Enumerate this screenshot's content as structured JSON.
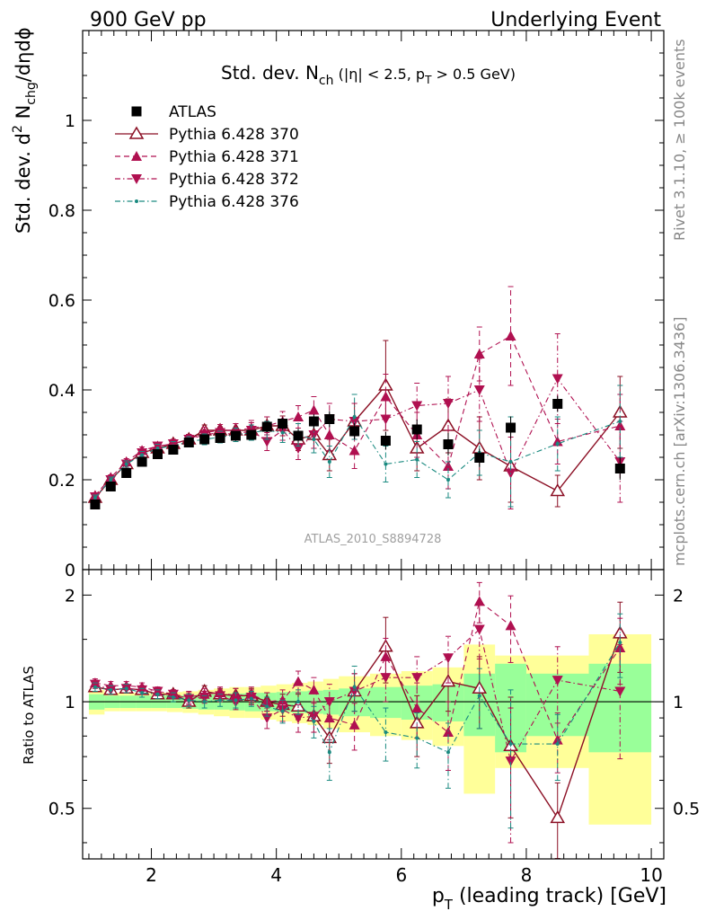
{
  "header": {
    "left": "900 GeV pp",
    "right": "Underlying Event"
  },
  "side_text": {
    "top": "Rivet 3.1.10, ≥ 100k events",
    "bottom": "mcplots.cern.ch [arXiv:1306.3436]"
  },
  "chart_data": [
    {
      "type": "scatter",
      "panel": "main",
      "title_main": "Std. dev. N",
      "title_sub": "ch",
      "title_rest": " (|η| < 2.5, p",
      "title_sub2": "T",
      "title_end": " > 0.5 GeV)",
      "ylabel": "Std. dev. d² Nₕₕₕ/dηdϕ",
      "ylabel_parts": [
        "Std. dev. d",
        "2",
        " N",
        "chg",
        "/dηdϕ"
      ],
      "watermark": "ATLAS_2010_S8894728",
      "xlim": [
        0.9,
        10.2
      ],
      "ylim": [
        0,
        1.2
      ],
      "yticks": [
        {
          "v": 0,
          "label": "0"
        },
        {
          "v": 0.2,
          "label": "0.2"
        },
        {
          "v": 0.4,
          "label": "0.4"
        },
        {
          "v": 0.6,
          "label": "0.6"
        },
        {
          "v": 0.8,
          "label": "0.8"
        },
        {
          "v": 1,
          "label": "1"
        }
      ],
      "x": [
        1.1,
        1.35,
        1.6,
        1.85,
        2.1,
        2.35,
        2.6,
        2.85,
        3.1,
        3.35,
        3.6,
        3.85,
        4.1,
        4.35,
        4.6,
        4.85,
        5.25,
        5.75,
        6.25,
        6.75,
        7.25,
        7.75,
        8.5,
        9.5
      ],
      "series": [
        {
          "name": "ATLAS",
          "style": "data",
          "color": "#000000",
          "values": [
            0.145,
            0.185,
            0.215,
            0.24,
            0.257,
            0.267,
            0.283,
            0.29,
            0.293,
            0.298,
            0.3,
            0.318,
            0.325,
            0.298,
            0.33,
            0.335,
            0.308,
            0.287,
            0.312,
            0.279,
            0.249,
            0.316,
            0.369,
            0.225
          ],
          "err": [
            0.004,
            0.004,
            0.004,
            0.005,
            0.005,
            0.006,
            0.007,
            0.008,
            0.009,
            0.01,
            0.011,
            0.012,
            0.014,
            0.015,
            0.016,
            0.018,
            0.018,
            0.02,
            0.022,
            0.025,
            0.02,
            0.025,
            0.018,
            0.025
          ]
        },
        {
          "name": "Pythia 6.428 370",
          "style": "solid",
          "marker": "triangle-up-open",
          "color": "#8b0f24",
          "values": [
            0.16,
            0.2,
            0.235,
            0.26,
            0.27,
            0.28,
            0.29,
            0.31,
            0.31,
            0.31,
            0.31,
            0.32,
            0.32,
            0.29,
            0.3,
            0.255,
            0.33,
            0.41,
            0.27,
            0.32,
            0.27,
            0.23,
            0.175,
            0.35
          ],
          "err": [
            0.006,
            0.006,
            0.007,
            0.008,
            0.009,
            0.01,
            0.011,
            0.012,
            0.013,
            0.015,
            0.017,
            0.02,
            0.022,
            0.025,
            0.03,
            0.035,
            0.04,
            0.1,
            0.05,
            0.06,
            0.07,
            0.08,
            0.035,
            0.08
          ]
        },
        {
          "name": "Pythia 6.428 371",
          "style": "dashed",
          "marker": "triangle-up",
          "color": "#b01050",
          "values": [
            0.165,
            0.205,
            0.24,
            0.265,
            0.275,
            0.28,
            0.29,
            0.305,
            0.31,
            0.31,
            0.315,
            0.32,
            0.33,
            0.34,
            0.355,
            0.3,
            0.265,
            0.385,
            0.3,
            0.23,
            0.48,
            0.52,
            0.285,
            0.32
          ],
          "err": [
            0.006,
            0.006,
            0.007,
            0.008,
            0.009,
            0.01,
            0.011,
            0.012,
            0.013,
            0.015,
            0.017,
            0.02,
            0.022,
            0.025,
            0.03,
            0.035,
            0.04,
            0.05,
            0.05,
            0.05,
            0.06,
            0.11,
            0.05,
            0.07
          ]
        },
        {
          "name": "Pythia 6.428 372",
          "style": "dashdot",
          "marker": "triangle-down",
          "color": "#b01050",
          "values": [
            0.162,
            0.2,
            0.235,
            0.26,
            0.275,
            0.28,
            0.29,
            0.3,
            0.305,
            0.3,
            0.31,
            0.285,
            0.31,
            0.27,
            0.3,
            0.335,
            0.33,
            0.335,
            0.365,
            0.37,
            0.4,
            0.215,
            0.425,
            0.24
          ],
          "err": [
            0.006,
            0.006,
            0.007,
            0.008,
            0.009,
            0.01,
            0.011,
            0.012,
            0.013,
            0.015,
            0.017,
            0.02,
            0.022,
            0.025,
            0.03,
            0.035,
            0.04,
            0.05,
            0.05,
            0.06,
            0.07,
            0.08,
            0.1,
            0.09
          ]
        },
        {
          "name": "Pythia 6.428 376",
          "style": "dashdot",
          "marker": "dot",
          "color": "#1a8a80",
          "values": [
            0.16,
            0.2,
            0.235,
            0.255,
            0.27,
            0.275,
            0.285,
            0.29,
            0.295,
            0.3,
            0.305,
            0.31,
            0.305,
            0.3,
            0.29,
            0.24,
            0.34,
            0.235,
            0.245,
            0.2,
            0.26,
            0.24,
            0.28,
            0.33
          ],
          "err": [
            0.006,
            0.006,
            0.007,
            0.008,
            0.009,
            0.01,
            0.011,
            0.012,
            0.013,
            0.015,
            0.017,
            0.02,
            0.022,
            0.025,
            0.03,
            0.035,
            0.05,
            0.04,
            0.04,
            0.04,
            0.05,
            0.1,
            0.06,
            0.08
          ]
        }
      ],
      "legend_position": "top-left"
    },
    {
      "type": "scatter",
      "panel": "ratio",
      "ylabel": "Ratio to ATLAS",
      "xlabel_main": "p",
      "xlabel_sub": "T",
      "xlabel_rest": " (leading track) [GeV]",
      "xlim": [
        0.9,
        10.2
      ],
      "ylim": [
        0.36,
        2.36
      ],
      "xticks": [
        {
          "v": 2,
          "label": "2"
        },
        {
          "v": 4,
          "label": "4"
        },
        {
          "v": 6,
          "label": "6"
        },
        {
          "v": 8,
          "label": "8"
        },
        {
          "v": 10,
          "label": "10"
        }
      ],
      "yticks": [
        {
          "v": 0.5,
          "label": "0.5"
        },
        {
          "v": 1,
          "label": "1"
        },
        {
          "v": 2,
          "label": "2"
        }
      ],
      "bins": [
        [
          1.0,
          1.25
        ],
        [
          1.25,
          1.5
        ],
        [
          1.5,
          1.75
        ],
        [
          1.75,
          2.0
        ],
        [
          2.0,
          2.25
        ],
        [
          2.25,
          2.5
        ],
        [
          2.5,
          2.75
        ],
        [
          2.75,
          3.0
        ],
        [
          3.0,
          3.25
        ],
        [
          3.25,
          3.5
        ],
        [
          3.5,
          3.75
        ],
        [
          3.75,
          4.0
        ],
        [
          4.0,
          4.25
        ],
        [
          4.25,
          4.5
        ],
        [
          4.5,
          4.75
        ],
        [
          4.75,
          5.0
        ],
        [
          5.0,
          5.5
        ],
        [
          5.5,
          6.0
        ],
        [
          6.0,
          6.5
        ],
        [
          6.5,
          7.0
        ],
        [
          7.0,
          7.5
        ],
        [
          7.5,
          8.0
        ],
        [
          8.0,
          9.0
        ],
        [
          9.0,
          10.0
        ]
      ],
      "band_stat": [
        0.05,
        0.04,
        0.04,
        0.04,
        0.04,
        0.04,
        0.045,
        0.05,
        0.05,
        0.055,
        0.06,
        0.06,
        0.065,
        0.07,
        0.075,
        0.08,
        0.09,
        0.1,
        0.11,
        0.12,
        0.2,
        0.28,
        0.2,
        0.28
      ],
      "band_total": [
        0.08,
        0.06,
        0.06,
        0.06,
        0.06,
        0.065,
        0.07,
        0.08,
        0.09,
        0.1,
        0.1,
        0.11,
        0.12,
        0.13,
        0.14,
        0.16,
        0.18,
        0.2,
        0.22,
        0.25,
        0.45,
        0.35,
        0.35,
        0.55
      ],
      "series": [
        {
          "name": "Pythia 6.428 370",
          "style": "solid",
          "marker": "triangle-up-open",
          "color": "#8b0f24",
          "values": [
            1.1,
            1.08,
            1.09,
            1.08,
            1.05,
            1.05,
            1.0,
            1.07,
            1.05,
            1.04,
            1.04,
            1.0,
            0.98,
            0.97,
            0.91,
            0.79,
            1.07,
            1.43,
            0.87,
            1.14,
            1.09,
            0.75,
            0.47,
            1.56
          ],
          "err": [
            0.03,
            0.03,
            0.03,
            0.03,
            0.03,
            0.03,
            0.04,
            0.04,
            0.04,
            0.05,
            0.05,
            0.06,
            0.07,
            0.08,
            0.09,
            0.12,
            0.13,
            0.3,
            0.17,
            0.2,
            0.25,
            0.28,
            0.12,
            0.35
          ]
        },
        {
          "name": "Pythia 6.428 371",
          "style": "dashed",
          "marker": "triangle-up",
          "color": "#b01050",
          "values": [
            1.13,
            1.11,
            1.11,
            1.1,
            1.07,
            1.05,
            1.03,
            1.05,
            1.06,
            1.04,
            1.05,
            1.0,
            1.01,
            1.14,
            1.08,
            0.9,
            0.86,
            1.34,
            0.96,
            0.82,
            1.92,
            1.64,
            0.78,
            1.42
          ],
          "err": [
            0.03,
            0.03,
            0.03,
            0.03,
            0.03,
            0.03,
            0.04,
            0.04,
            0.04,
            0.05,
            0.05,
            0.06,
            0.07,
            0.08,
            0.09,
            0.12,
            0.13,
            0.17,
            0.17,
            0.18,
            0.25,
            0.35,
            0.15,
            0.3
          ]
        },
        {
          "name": "Pythia 6.428 372",
          "style": "dashdot",
          "marker": "triangle-down",
          "color": "#b01050",
          "values": [
            1.12,
            1.08,
            1.09,
            1.08,
            1.07,
            1.05,
            1.02,
            1.03,
            1.04,
            1.0,
            1.03,
            0.9,
            0.95,
            0.9,
            0.91,
            1.0,
            1.07,
            1.17,
            1.17,
            1.33,
            1.6,
            0.68,
            1.15,
            1.07
          ],
          "err": [
            0.03,
            0.03,
            0.03,
            0.03,
            0.03,
            0.03,
            0.04,
            0.04,
            0.04,
            0.05,
            0.05,
            0.06,
            0.07,
            0.08,
            0.09,
            0.12,
            0.13,
            0.17,
            0.17,
            0.2,
            0.28,
            0.28,
            0.28,
            0.38
          ]
        },
        {
          "name": "Pythia 6.428 376",
          "style": "dashdot",
          "marker": "dot",
          "color": "#1a8a80",
          "values": [
            1.1,
            1.08,
            1.09,
            1.06,
            1.05,
            1.03,
            1.01,
            1.0,
            1.01,
            1.01,
            1.02,
            0.97,
            0.94,
            1.0,
            0.88,
            0.72,
            1.1,
            0.82,
            0.79,
            0.72,
            1.04,
            0.76,
            0.76,
            1.47
          ],
          "err": [
            0.03,
            0.03,
            0.03,
            0.03,
            0.03,
            0.03,
            0.04,
            0.04,
            0.04,
            0.05,
            0.05,
            0.06,
            0.07,
            0.08,
            0.09,
            0.12,
            0.16,
            0.14,
            0.14,
            0.15,
            0.2,
            0.32,
            0.16,
            0.3
          ]
        }
      ]
    }
  ]
}
